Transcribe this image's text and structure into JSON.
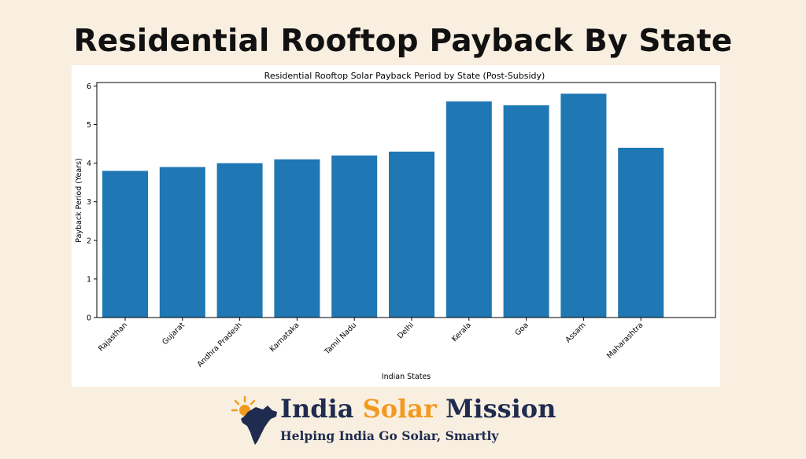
{
  "page": {
    "title": "Residential Rooftop Payback By State",
    "background": "#f9efe1"
  },
  "chart_data": {
    "type": "bar",
    "title": "Residential Rooftop Solar Payback Period by State (Post-Subsidy)",
    "xlabel": "Indian States",
    "ylabel": "Payback Period (Years)",
    "categories": [
      "Rajasthan",
      "Gujarat",
      "Andhra Pradesh",
      "Karnataka",
      "Tamil Nadu",
      "Delhi",
      "Kerala",
      "Goa",
      "Assam",
      "Maharashtra"
    ],
    "values": [
      3.8,
      3.9,
      4.0,
      4.1,
      4.2,
      4.3,
      5.6,
      5.5,
      5.8,
      4.4
    ],
    "yticks": [
      0,
      1,
      2,
      3,
      4,
      5,
      6
    ],
    "ylim": [
      0,
      6.09
    ],
    "grid": false,
    "legend": "none",
    "bar_color": "#1f77b4"
  },
  "logo": {
    "brand_word1": "India",
    "brand_word2": "Solar",
    "brand_word3": "Mission",
    "tagline": "Helping India Go Solar, Smartly",
    "icon": "india-map-sun-icon",
    "primary_color": "#1f2c4f",
    "accent_color": "#f29a1f"
  }
}
